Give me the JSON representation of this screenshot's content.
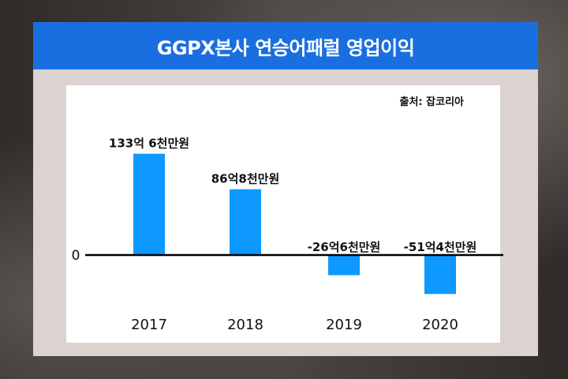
{
  "title": "GGPX본사 연승어패럴 영업이익",
  "source": "출처: 잡코리아",
  "chart_data": {
    "type": "bar",
    "categories": [
      "2017",
      "2018",
      "2019",
      "2020"
    ],
    "values": [
      133.6,
      86.8,
      -26.6,
      -51.4
    ],
    "data_labels": [
      "133억 6천만원",
      "86억8천만원",
      "-26억6천만원",
      "-51억4천만원"
    ],
    "zero_label": "0",
    "unit": "억원",
    "bar_color": "#0d99ff",
    "grid": false,
    "legend": "none"
  }
}
